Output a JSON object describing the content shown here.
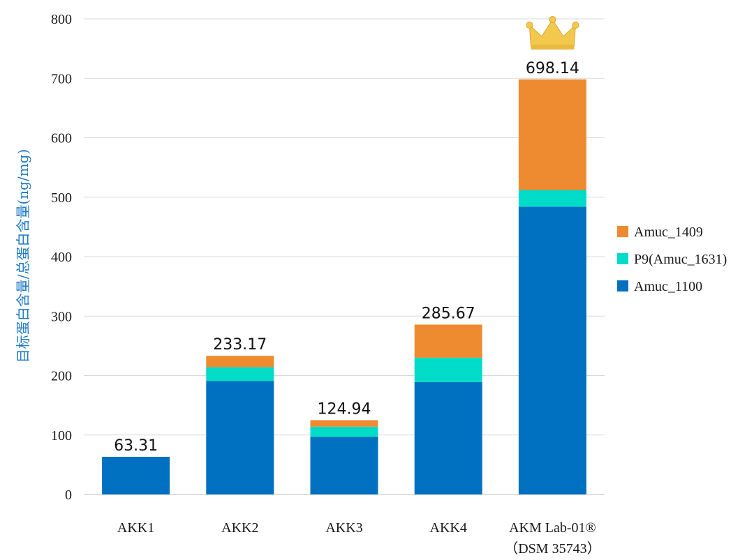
{
  "chart_data": {
    "type": "bar",
    "stacked": true,
    "categories": [
      "AKK1",
      "AKK2",
      "AKK3",
      "AKK4",
      "AKM Lab-01®"
    ],
    "category_sublabels": [
      "",
      "",
      "",
      "",
      "（DSM 35743）"
    ],
    "series": [
      {
        "name": "Amuc_1100",
        "color": "#0070c0",
        "values": [
          63.31,
          191,
          97,
          189,
          484
        ]
      },
      {
        "name": "P9(Amuc_1631)",
        "color": "#00dcc8",
        "values": [
          0,
          23,
          17,
          41,
          28
        ]
      },
      {
        "name": "Amuc_1409",
        "color": "#ee8a30",
        "values": [
          0,
          19.17,
          10.94,
          55.67,
          186.14
        ]
      }
    ],
    "totals": [
      "63.31",
      "233.17",
      "124.94",
      "285.67",
      "698.14"
    ],
    "legend_order": [
      "Amuc_1409",
      "P9(Amuc_1631)",
      "Amuc_1100"
    ],
    "legend_position": "right",
    "ylabel": "目标蛋白含量/总蛋白含量(ng/mg)",
    "ylabel_color": "#1f7ac4",
    "ylim": [
      0,
      800
    ],
    "yticks": [
      0,
      100,
      200,
      300,
      400,
      500,
      600,
      700,
      800
    ],
    "grid": true,
    "grid_color": "#d9d9d9",
    "highlight_icon": "crown-icon",
    "highlight_category": "AKM Lab-01®",
    "crown_color": "#f2c94c"
  }
}
